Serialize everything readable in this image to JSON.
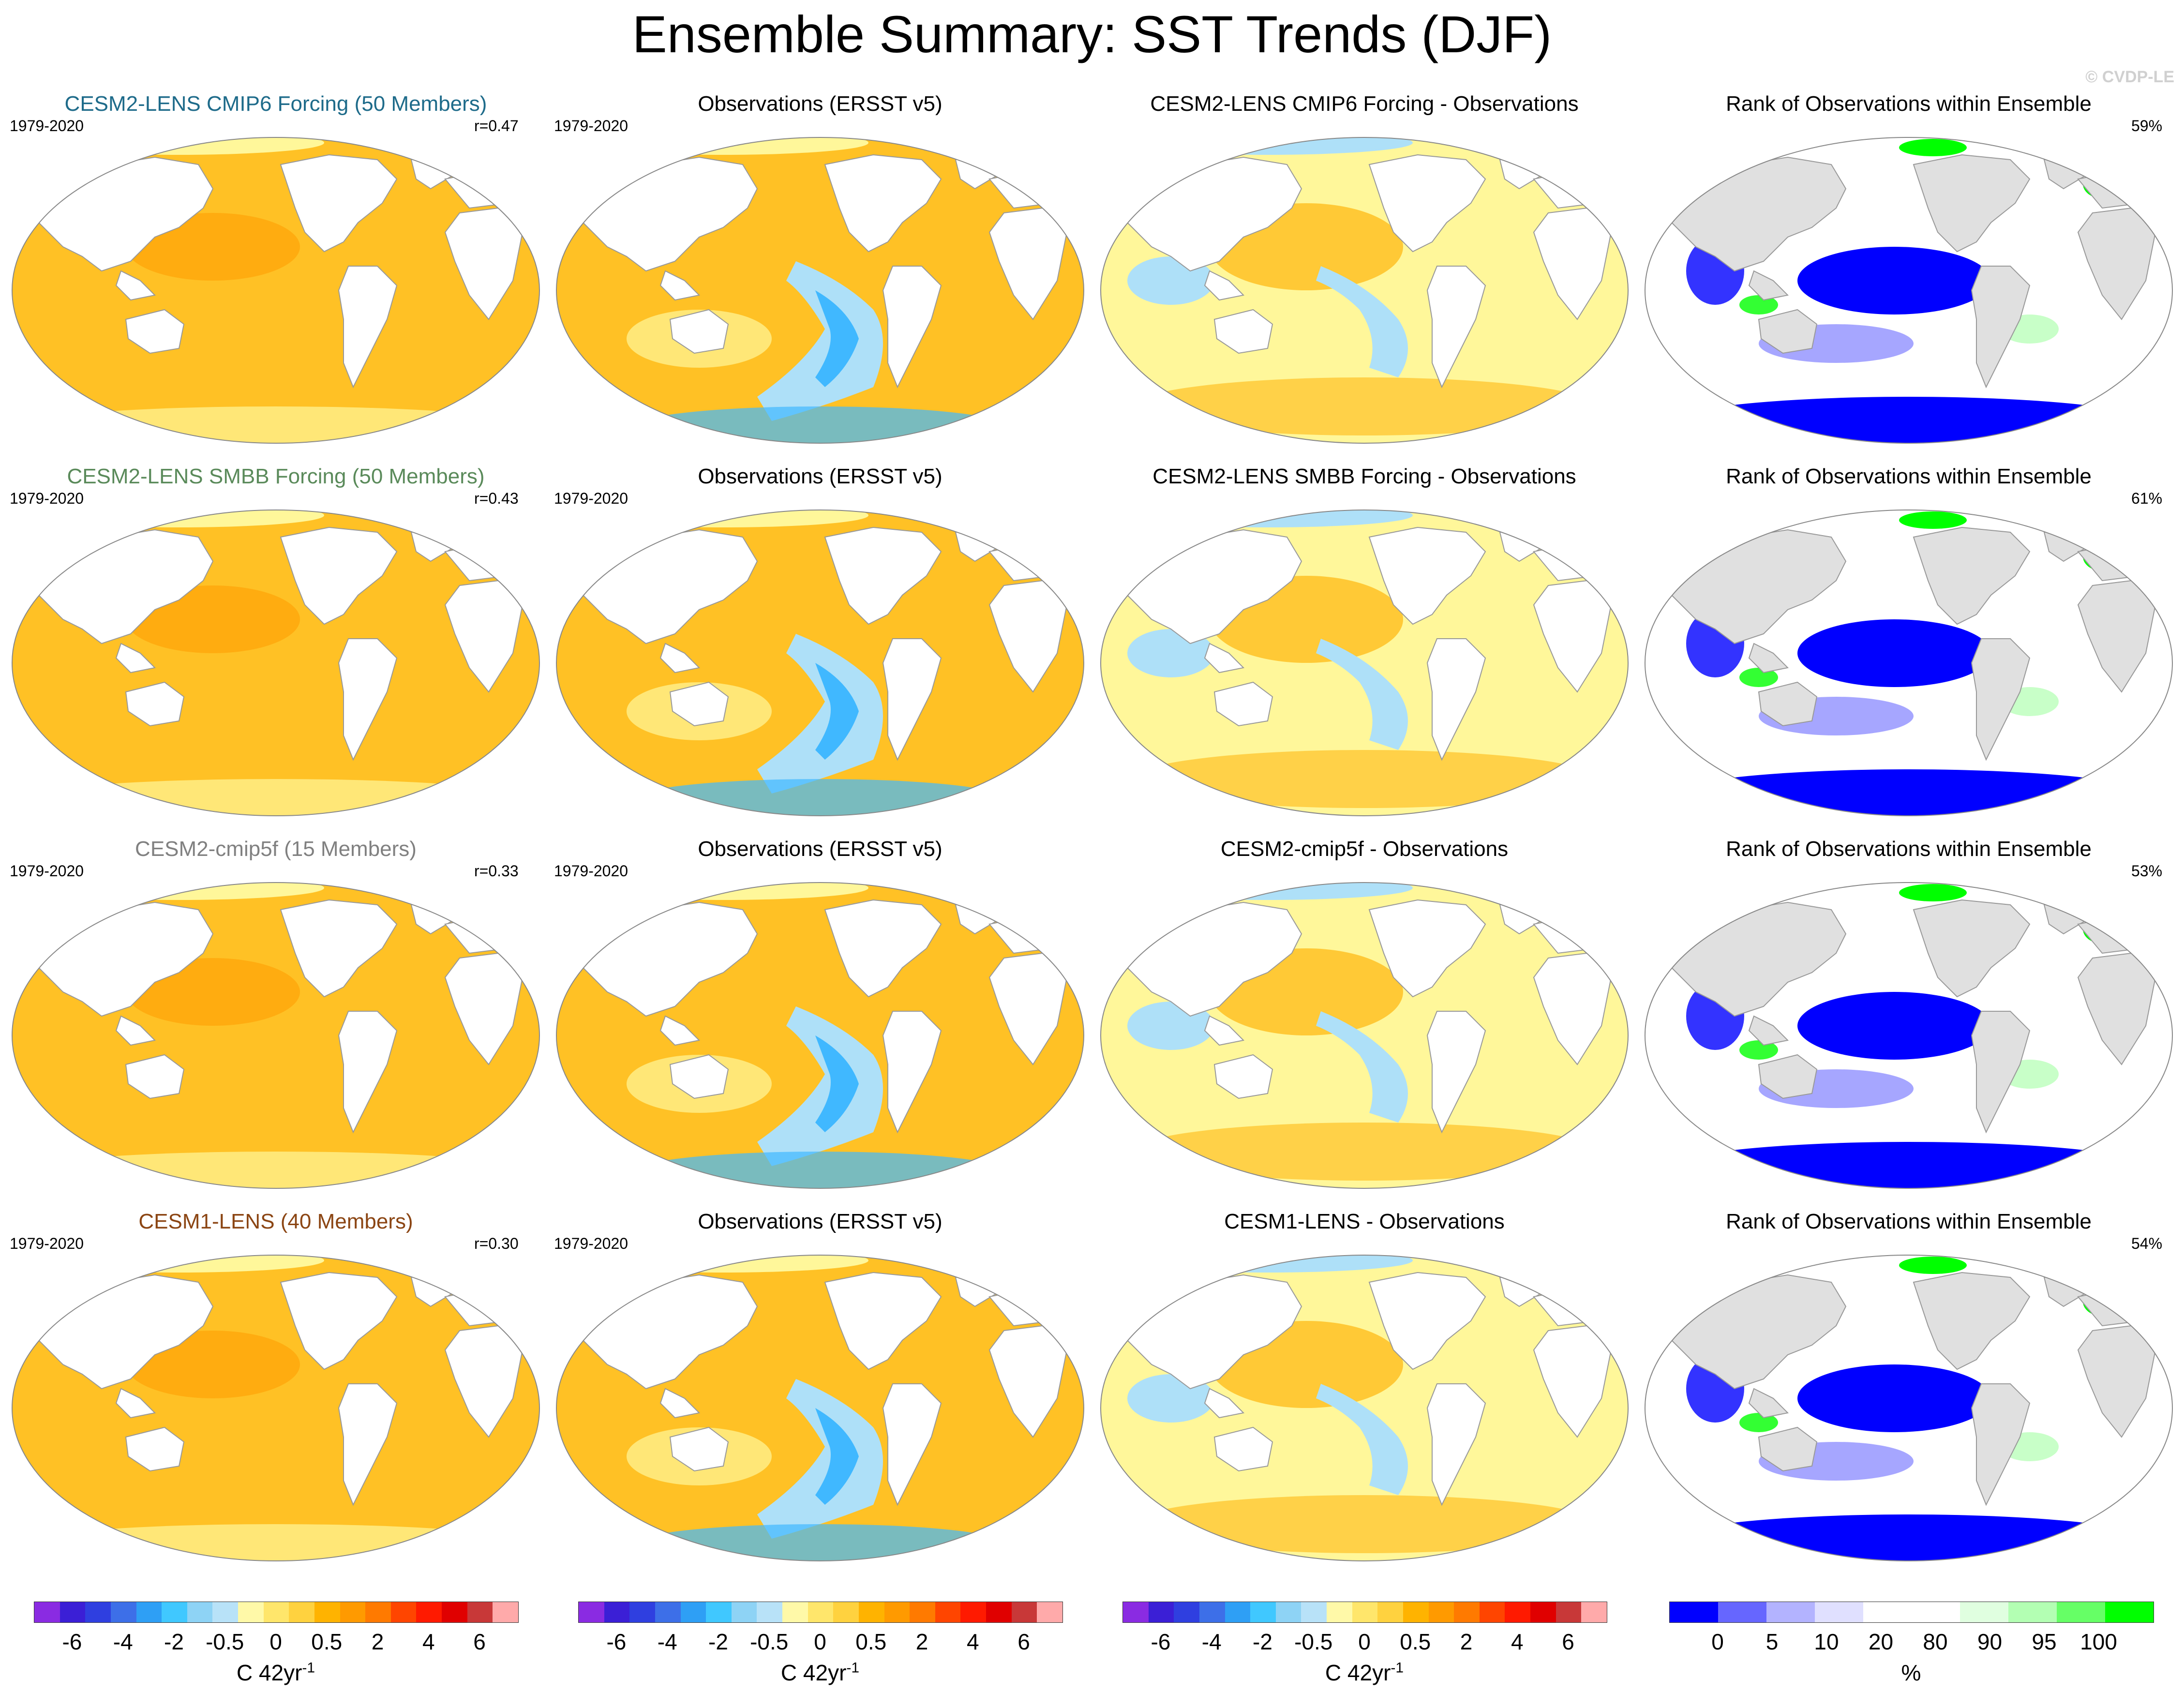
{
  "title": "Ensemble Summary: SST Trends (DJF)",
  "watermark": "© CVDP-LE",
  "rows": [
    {
      "model_title": "CESM2-LENS CMIP6 Forcing (50 Members)",
      "model_title_color": "#1e6b8a",
      "period": "1979-2020",
      "corr": "r=0.47",
      "obs_title": "Observations (ERSST v5)",
      "obs_period": "1979-2020",
      "diff_title": "CESM2-LENS CMIP6 Forcing - Observations",
      "rank_title": "Rank of Observations within Ensemble",
      "rank_pct": "59%"
    },
    {
      "model_title": "CESM2-LENS SMBB Forcing (50 Members)",
      "model_title_color": "#5a8a5a",
      "period": "1979-2020",
      "corr": "r=0.43",
      "obs_title": "Observations (ERSST v5)",
      "obs_period": "1979-2020",
      "diff_title": "CESM2-LENS SMBB Forcing - Observations",
      "rank_title": "Rank of Observations within Ensemble",
      "rank_pct": "61%"
    },
    {
      "model_title": "CESM2-cmip5f (15 Members)",
      "model_title_color": "#808080",
      "period": "1979-2020",
      "corr": "r=0.33",
      "obs_title": "Observations (ERSST v5)",
      "obs_period": "1979-2020",
      "diff_title": "CESM2-cmip5f - Observations",
      "rank_title": "Rank of Observations within Ensemble",
      "rank_pct": "53%"
    },
    {
      "model_title": "CESM1-LENS (40 Members)",
      "model_title_color": "#8b4513",
      "period": "1979-2020",
      "corr": "r=0.30",
      "obs_title": "Observations (ERSST v5)",
      "obs_period": "1979-2020",
      "diff_title": "CESM1-LENS - Observations",
      "rank_title": "Rank of Observations within Ensemble",
      "rank_pct": "54%"
    }
  ],
  "colorbar_trend": {
    "colors": [
      "#8a2be2",
      "#3b1fd6",
      "#2f3fe0",
      "#3d6fe8",
      "#2e9ff5",
      "#40c8ff",
      "#8ed3f5",
      "#b8e2f8",
      "#fff9a8",
      "#ffe66b",
      "#ffd23f",
      "#ffb300",
      "#ff9a00",
      "#ff7a00",
      "#ff4500",
      "#ff1a00",
      "#e00000",
      "#c83838",
      "#ffaaaa"
    ],
    "ticks": [
      "-6",
      "-4",
      "-2",
      "-0.5",
      "0",
      "0.5",
      "2",
      "4",
      "6"
    ],
    "unit": "C 42yr",
    "unit_sup": "-1"
  },
  "colorbar_rank": {
    "colors": [
      "#0000ff",
      "#6666ff",
      "#b3b3ff",
      "#e0e0ff",
      "#ffffff",
      "#ffffff",
      "#e0ffe0",
      "#b3ffb3",
      "#66ff66",
      "#00ff00"
    ],
    "ticks": [
      "0",
      "5",
      "10",
      "20",
      "80",
      "90",
      "95",
      "100"
    ],
    "unit": "%"
  },
  "map_colors": {
    "land": "#ffffff",
    "rank_land": "#e0e0e0",
    "warm": "#ffc125",
    "warm_strong": "#ff9a00",
    "weak_warm": "#fff79a",
    "cool_light": "#aee0f8",
    "cool": "#40b8ff",
    "rank_low": "#0000ff",
    "rank_mid_low": "#8080ff",
    "rank_high": "#00ff00",
    "rank_mid_high": "#c8ffc8"
  }
}
